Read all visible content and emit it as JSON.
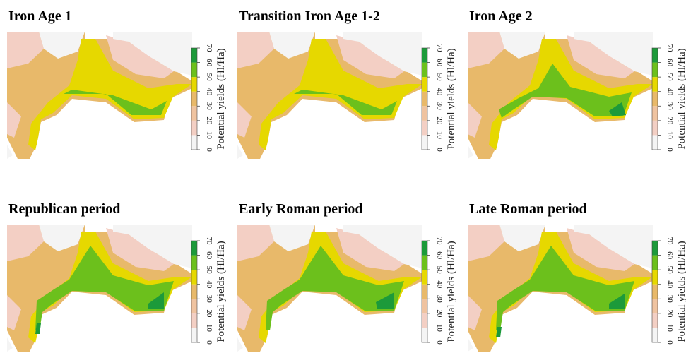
{
  "panels": [
    {
      "title": "Iron Age 1"
    },
    {
      "title": "Transition Iron Age 1-2"
    },
    {
      "title": "Iron Age 2"
    },
    {
      "title": "Republican period"
    },
    {
      "title": "Early Roman period"
    },
    {
      "title": "Late Roman period"
    }
  ],
  "legend": {
    "label": "Potential yields (Hl/Ha)",
    "ticks": [
      0,
      10,
      20,
      30,
      40,
      50,
      60,
      70
    ],
    "colors": [
      "#f4f4f4",
      "#f3cfc4",
      "#efc3a0",
      "#e8b96a",
      "#e6d800",
      "#6cc01c",
      "#1c9a3a"
    ]
  }
}
